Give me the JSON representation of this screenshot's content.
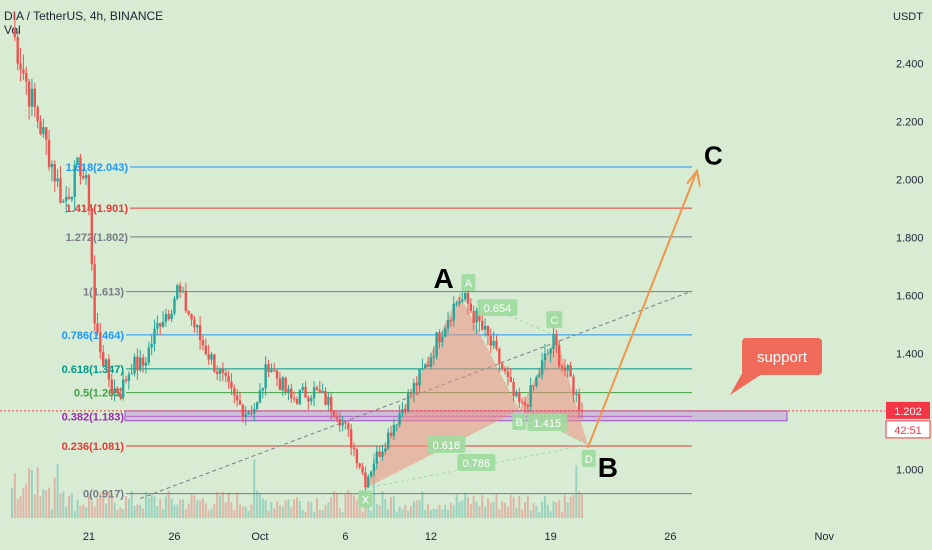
{
  "header": {
    "symbol": "DIA / TetherUS, 4h, BINANCE",
    "indicator": "Vol"
  },
  "colors": {
    "background": "#d8ecd4",
    "bull": "#26a69a",
    "bear": "#ef5350",
    "fib_blue": "#2196f3",
    "fib_red": "#e53935",
    "fib_grey": "#787b86",
    "fib_green": "#43a047",
    "pattern_fill": "#ef8f7e",
    "label_bg": "#9fdb9f",
    "arrow": "#f0964a",
    "callout": "#f06a5a",
    "support_zone": "#c59ad8",
    "price_tag": "#f23645"
  },
  "chart_data": {
    "type": "candlestick",
    "y_axis": {
      "unit": "USDT",
      "ylim": [
        0.85,
        2.56
      ],
      "ticks": [
        "2.400",
        "2.200",
        "2.000",
        "1.800",
        "1.600",
        "1.400",
        "1.200",
        "1.000"
      ],
      "tick_values": [
        2.4,
        2.2,
        2.0,
        1.8,
        1.6,
        1.4,
        1.2,
        1.0
      ]
    },
    "x_axis": {
      "ticks": [
        "21",
        "26",
        "Oct",
        "6",
        "12",
        "19",
        "26",
        "Nov"
      ],
      "tick_index": [
        27,
        57,
        87,
        117,
        147,
        189,
        231,
        285
      ]
    },
    "price_path": [
      [
        0,
        2.52
      ],
      [
        6,
        2.3
      ],
      [
        12,
        2.12
      ],
      [
        18,
        1.92
      ],
      [
        24,
        2.05
      ],
      [
        27,
        1.93
      ],
      [
        29,
        1.5
      ],
      [
        32,
        1.38
      ],
      [
        35,
        1.28
      ],
      [
        38,
        1.27
      ],
      [
        42,
        1.36
      ],
      [
        46,
        1.36
      ],
      [
        52,
        1.52
      ],
      [
        55,
        1.55
      ],
      [
        58,
        1.62
      ],
      [
        62,
        1.54
      ],
      [
        66,
        1.45
      ],
      [
        70,
        1.38
      ],
      [
        74,
        1.31
      ],
      [
        78,
        1.24
      ],
      [
        82,
        1.2
      ],
      [
        86,
        1.22
      ],
      [
        90,
        1.37
      ],
      [
        94,
        1.3
      ],
      [
        98,
        1.24
      ],
      [
        102,
        1.26
      ],
      [
        106,
        1.27
      ],
      [
        110,
        1.24
      ],
      [
        114,
        1.2
      ],
      [
        118,
        1.12
      ],
      [
        122,
        1.02
      ],
      [
        124,
        0.96
      ],
      [
        127,
        1.03
      ],
      [
        130,
        1.08
      ],
      [
        134,
        1.16
      ],
      [
        138,
        1.23
      ],
      [
        142,
        1.3
      ],
      [
        146,
        1.37
      ],
      [
        150,
        1.47
      ],
      [
        154,
        1.55
      ],
      [
        157,
        1.59
      ],
      [
        160,
        1.57
      ],
      [
        164,
        1.5
      ],
      [
        168,
        1.43
      ],
      [
        172,
        1.35
      ],
      [
        176,
        1.25
      ],
      [
        179,
        1.21
      ],
      [
        182,
        1.26
      ],
      [
        186,
        1.36
      ],
      [
        190,
        1.44
      ],
      [
        193,
        1.36
      ],
      [
        196,
        1.31
      ],
      [
        198,
        1.25
      ],
      [
        200,
        1.2
      ]
    ],
    "current_price": "1.202",
    "countdown": "42:51",
    "fib_levels": [
      {
        "label": "1.618(2.043)",
        "price": 2.043,
        "color": "#2196f3"
      },
      {
        "label": "1.414(1.901)",
        "price": 1.901,
        "color": "#e53935"
      },
      {
        "label": "1.272(1.802)",
        "price": 1.802,
        "color": "#787b86"
      },
      {
        "label": "1(1.613)",
        "price": 1.613,
        "color": "#787b86"
      },
      {
        "label": "0.786(1.464)",
        "price": 1.464,
        "color": "#2196f3"
      },
      {
        "label": "0.618(1.347)",
        "price": 1.347,
        "color": "#009688"
      },
      {
        "label": "0.5(1.265)",
        "price": 1.265,
        "color": "#43a047"
      },
      {
        "label": "0.382(1.183)",
        "price": 1.183,
        "color": "#9c27b0"
      },
      {
        "label": "0.236(1.081)",
        "price": 1.081,
        "color": "#e53935"
      },
      {
        "label": "0(0.917)",
        "price": 0.917,
        "color": "#787b86"
      }
    ],
    "support_zone": {
      "label": "support",
      "top": 1.202,
      "bottom": 1.168
    },
    "harmonic": {
      "points": [
        {
          "name": "X",
          "i": 124,
          "price": 0.935
        },
        {
          "name": "A",
          "i": 157,
          "price": 1.605
        },
        {
          "name": "B",
          "i": 178,
          "price": 1.205
        },
        {
          "name": "C",
          "i": 191,
          "price": 1.46
        },
        {
          "name": "D",
          "i": 202,
          "price": 1.085
        }
      ],
      "ratios": [
        "0.654",
        "1.415",
        "0.618",
        "0.786"
      ]
    },
    "annotations": [
      "A",
      "B",
      "C"
    ],
    "projection_target_price": 2.03
  }
}
